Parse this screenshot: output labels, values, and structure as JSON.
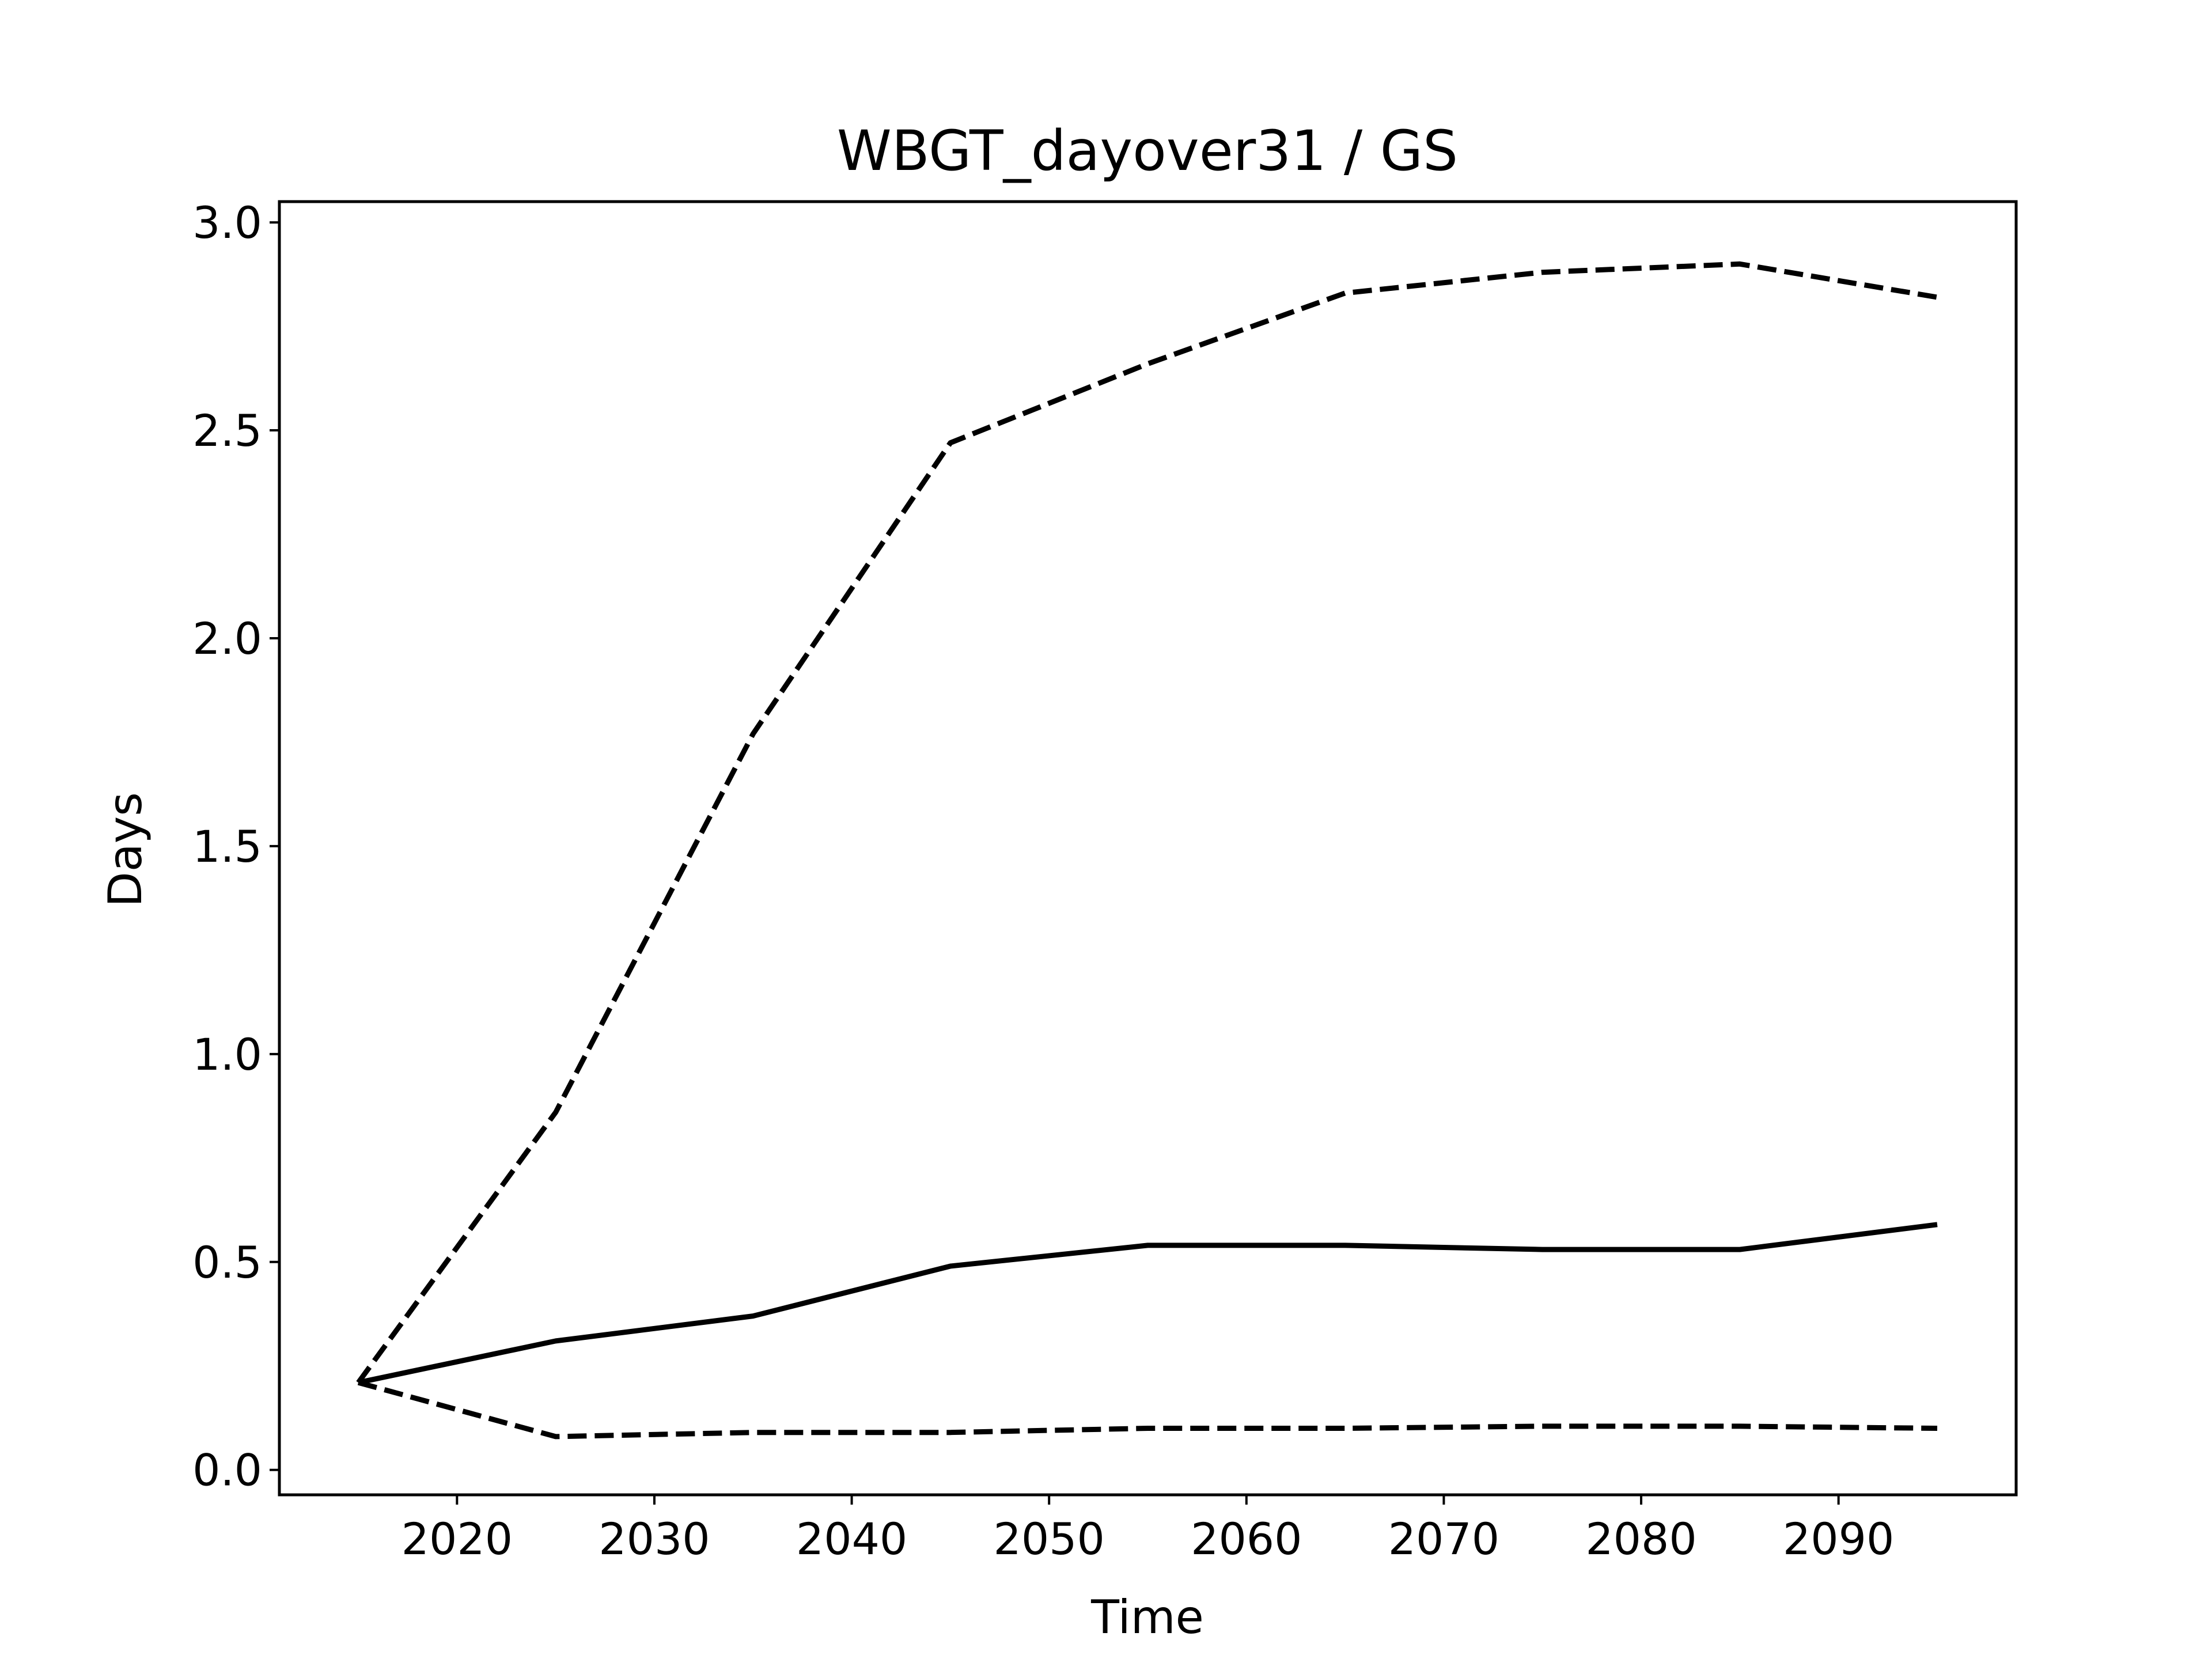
{
  "chart_data": {
    "type": "line",
    "title": "WBGT_dayover31 / GS",
    "xlabel": "Time",
    "ylabel": "Days",
    "xlim": [
      2011,
      2099
    ],
    "ylim": [
      -0.06,
      3.05
    ],
    "x_ticks": [
      2020,
      2030,
      2040,
      2050,
      2060,
      2070,
      2080,
      2090
    ],
    "x_tick_labels": [
      "2020",
      "2030",
      "2040",
      "2050",
      "2060",
      "2070",
      "2080",
      "2090"
    ],
    "y_ticks": [
      0.0,
      0.5,
      1.0,
      1.5,
      2.0,
      2.5,
      3.0
    ],
    "y_tick_labels": [
      "0.0",
      "0.5",
      "1.0",
      "1.5",
      "2.0",
      "2.5",
      "3.0"
    ],
    "grid": false,
    "x": [
      2015,
      2025,
      2035,
      2045,
      2055,
      2065,
      2075,
      2085,
      2095
    ],
    "series": [
      {
        "style": "solid",
        "color": "#000000",
        "values": [
          0.21,
          0.31,
          0.37,
          0.49,
          0.54,
          0.54,
          0.53,
          0.53,
          0.59
        ]
      },
      {
        "style": "dashed",
        "color": "#000000",
        "values": [
          0.21,
          0.86,
          1.77,
          2.47,
          2.66,
          2.83,
          2.88,
          2.9,
          2.82
        ]
      },
      {
        "style": "dashed",
        "color": "#000000",
        "values": [
          0.21,
          0.08,
          0.09,
          0.09,
          0.1,
          0.1,
          0.105,
          0.105,
          0.1
        ]
      }
    ]
  }
}
